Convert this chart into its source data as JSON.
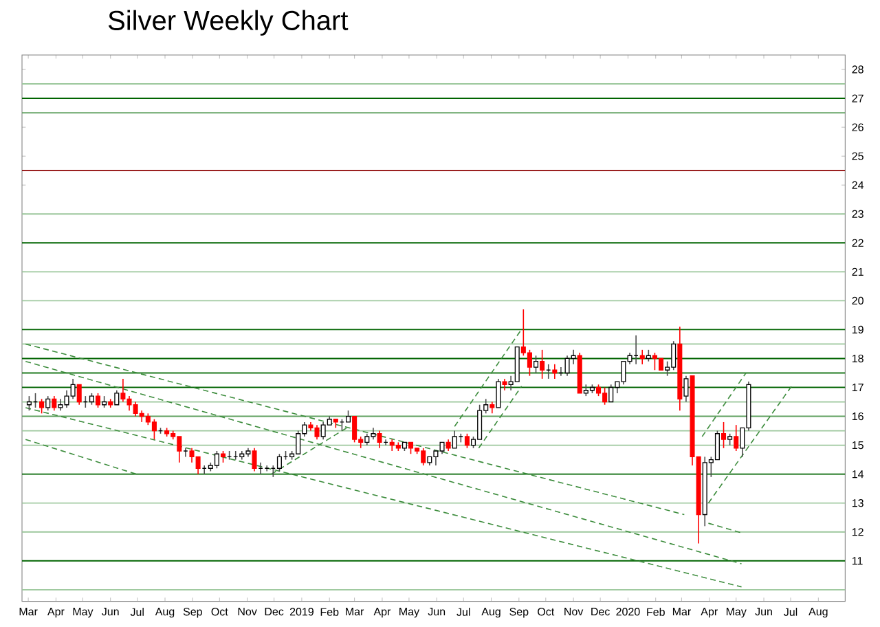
{
  "chart_data": {
    "type": "candlestick",
    "title": "Silver Weekly Chart",
    "colors": [
      "#ffffff",
      "#000000",
      "#ff0000",
      "#ffffff",
      "#ff0000",
      "#ffffff",
      "#ffffff",
      "#ffffff",
      "#ff0000",
      "#000000",
      "#ffffff",
      "#ff0000",
      "#ffffff",
      "#ff0000",
      "#ffffff",
      "#ff0000",
      "#ff0000",
      "#ff0000",
      "#ff0000",
      "#ff0000",
      "#ff0000",
      "#000000",
      "#ff0000",
      "#ff0000",
      "#ff0000",
      "#000000",
      "#ff0000",
      "#ff0000",
      "#000000",
      "#ffffff",
      "#ffffff",
      "#ff0000",
      "#000000",
      "#000000",
      "#ffffff",
      "#ffffff",
      "#ff0000",
      "#000000",
      "#000000",
      "#000000",
      "#ffffff",
      "#000000",
      "#ffffff",
      "#ffffff",
      "#ffffff",
      "#ff0000",
      "#ff0000",
      "#ffffff",
      "#ffffff",
      "#ff0000",
      "#000000",
      "#ffffff",
      "#ff0000",
      "#ff0000",
      "#ffffff",
      "#ffffff",
      "#ff0000",
      "#000000",
      "#ff0000",
      "#ff0000",
      "#ffffff",
      "#ff0000",
      "#ff0000",
      "#ff0000",
      "#ffffff",
      "#ffffff",
      "#ffffff",
      "#ff0000",
      "#ffffff",
      "#000000",
      "#ff0000",
      "#ffffff",
      "#ffffff",
      "#ffffff",
      "#ff0000",
      "#ffffff",
      "#ff0000",
      "#ffffff",
      "#ffffff",
      "#ff0000",
      "#ff0000",
      "#ffffff",
      "#ff0000",
      "#000000",
      "#ff0000",
      "#000000",
      "#ffffff",
      "#ffffff",
      "#ff0000",
      "#ffffff",
      "#ffffff",
      "#ff0000",
      "#ff0000",
      "#ffffff",
      "#ffffff",
      "#ffffff",
      "#ffffff",
      "#000000",
      "#ff0000",
      "#ffffff",
      "#ff0000",
      "#ff0000",
      "#ffffff",
      "#ffffff",
      "#ff0000",
      "#ffffff",
      "#ff0000",
      "#ff0000",
      "#ffffff",
      "#ffffff",
      "#ffffff",
      "#ff0000",
      "#ffffff",
      "#ff0000",
      "#ffffff",
      "#ffffff"
    ],
    "x": [
      "2018-03-02",
      "2018-03-09",
      "2018-03-16",
      "2018-03-23",
      "2018-03-30",
      "2018-04-06",
      "2018-04-13",
      "2018-04-20",
      "2018-04-27",
      "2018-05-04",
      "2018-05-11",
      "2018-05-18",
      "2018-05-25",
      "2018-06-01",
      "2018-06-08",
      "2018-06-15",
      "2018-06-22",
      "2018-06-29",
      "2018-07-06",
      "2018-07-13",
      "2018-07-20",
      "2018-07-27",
      "2018-08-03",
      "2018-08-10",
      "2018-08-17",
      "2018-08-24",
      "2018-08-31",
      "2018-09-07",
      "2018-09-14",
      "2018-09-21",
      "2018-09-28",
      "2018-10-05",
      "2018-10-12",
      "2018-10-19",
      "2018-10-26",
      "2018-11-02",
      "2018-11-09",
      "2018-11-16",
      "2018-11-23",
      "2018-11-30",
      "2018-12-07",
      "2018-12-14",
      "2018-12-21",
      "2018-12-28",
      "2019-01-04",
      "2019-01-11",
      "2019-01-18",
      "2019-01-25",
      "2019-02-01",
      "2019-02-08",
      "2019-02-15",
      "2019-02-22",
      "2019-03-01",
      "2019-03-08",
      "2019-03-15",
      "2019-03-22",
      "2019-03-29",
      "2019-04-05",
      "2019-04-12",
      "2019-04-19",
      "2019-04-26",
      "2019-05-03",
      "2019-05-10",
      "2019-05-17",
      "2019-05-24",
      "2019-05-31",
      "2019-06-07",
      "2019-06-14",
      "2019-06-21",
      "2019-06-28",
      "2019-07-05",
      "2019-07-12",
      "2019-07-19",
      "2019-07-26",
      "2019-08-02",
      "2019-08-09",
      "2019-08-16",
      "2019-08-23",
      "2019-08-30",
      "2019-09-06",
      "2019-09-13",
      "2019-09-20",
      "2019-09-27",
      "2019-10-04",
      "2019-10-11",
      "2019-10-18",
      "2019-10-25",
      "2019-11-01",
      "2019-11-08",
      "2019-11-15",
      "2019-11-22",
      "2019-11-29",
      "2019-12-06",
      "2019-12-13",
      "2019-12-20",
      "2019-12-27",
      "2020-01-03",
      "2020-01-10",
      "2020-01-17",
      "2020-01-24",
      "2020-01-31",
      "2020-02-07",
      "2020-02-14",
      "2020-02-21",
      "2020-02-28",
      "2020-03-06",
      "2020-03-13",
      "2020-03-20",
      "2020-03-27",
      "2020-04-03",
      "2020-04-10",
      "2020-04-17",
      "2020-04-24",
      "2020-05-01",
      "2020-05-08",
      "2020-05-15"
    ],
    "ohlc": [
      [
        16.4,
        16.7,
        16.2,
        16.5
      ],
      [
        16.5,
        16.8,
        16.3,
        16.5
      ],
      [
        16.5,
        16.6,
        16.1,
        16.3
      ],
      [
        16.3,
        16.7,
        16.2,
        16.6
      ],
      [
        16.6,
        16.7,
        16.2,
        16.3
      ],
      [
        16.3,
        16.6,
        16.2,
        16.4
      ],
      [
        16.4,
        16.9,
        16.3,
        16.7
      ],
      [
        16.7,
        17.3,
        16.6,
        17.1
      ],
      [
        17.1,
        17.1,
        16.4,
        16.5
      ],
      [
        16.5,
        16.7,
        16.3,
        16.5
      ],
      [
        16.5,
        16.8,
        16.4,
        16.7
      ],
      [
        16.7,
        16.8,
        16.3,
        16.4
      ],
      [
        16.4,
        16.7,
        16.3,
        16.5
      ],
      [
        16.5,
        16.6,
        16.3,
        16.4
      ],
      [
        16.4,
        16.9,
        16.4,
        16.8
      ],
      [
        16.8,
        17.3,
        16.5,
        16.6
      ],
      [
        16.6,
        16.7,
        16.2,
        16.4
      ],
      [
        16.4,
        16.5,
        16.0,
        16.1
      ],
      [
        16.1,
        16.2,
        15.8,
        16.0
      ],
      [
        16.0,
        16.1,
        15.7,
        15.8
      ],
      [
        15.8,
        15.9,
        15.2,
        15.5
      ],
      [
        15.5,
        15.6,
        15.4,
        15.5
      ],
      [
        15.5,
        15.6,
        15.3,
        15.4
      ],
      [
        15.4,
        15.5,
        15.2,
        15.3
      ],
      [
        15.3,
        15.3,
        14.4,
        14.8
      ],
      [
        14.8,
        14.9,
        14.6,
        14.8
      ],
      [
        14.8,
        14.9,
        14.4,
        14.6
      ],
      [
        14.6,
        14.6,
        14.0,
        14.2
      ],
      [
        14.2,
        14.3,
        14.0,
        14.2
      ],
      [
        14.2,
        14.4,
        14.1,
        14.3
      ],
      [
        14.3,
        14.8,
        14.2,
        14.7
      ],
      [
        14.7,
        14.8,
        14.4,
        14.6
      ],
      [
        14.6,
        14.8,
        14.5,
        14.6
      ],
      [
        14.6,
        14.8,
        14.5,
        14.6
      ],
      [
        14.6,
        14.8,
        14.5,
        14.7
      ],
      [
        14.7,
        14.9,
        14.6,
        14.8
      ],
      [
        14.8,
        14.9,
        14.1,
        14.2
      ],
      [
        14.2,
        14.4,
        14.0,
        14.2
      ],
      [
        14.2,
        14.3,
        14.1,
        14.2
      ],
      [
        14.2,
        14.3,
        13.9,
        14.2
      ],
      [
        14.2,
        14.7,
        14.1,
        14.6
      ],
      [
        14.6,
        14.8,
        14.5,
        14.6
      ],
      [
        14.6,
        14.8,
        14.5,
        14.7
      ],
      [
        14.7,
        15.5,
        14.7,
        15.4
      ],
      [
        15.4,
        15.8,
        15.3,
        15.7
      ],
      [
        15.7,
        15.8,
        15.5,
        15.6
      ],
      [
        15.6,
        15.7,
        15.2,
        15.3
      ],
      [
        15.3,
        15.8,
        15.2,
        15.7
      ],
      [
        15.7,
        16.0,
        15.7,
        15.9
      ],
      [
        15.9,
        15.9,
        15.6,
        15.8
      ],
      [
        15.8,
        15.9,
        15.5,
        15.8
      ],
      [
        15.8,
        16.2,
        15.8,
        16.0
      ],
      [
        16.0,
        16.0,
        15.1,
        15.2
      ],
      [
        15.2,
        15.3,
        14.9,
        15.1
      ],
      [
        15.1,
        15.4,
        15.0,
        15.3
      ],
      [
        15.3,
        15.6,
        15.2,
        15.4
      ],
      [
        15.4,
        15.5,
        14.9,
        15.1
      ],
      [
        15.1,
        15.2,
        15.0,
        15.1
      ],
      [
        15.1,
        15.2,
        14.8,
        15.0
      ],
      [
        15.0,
        15.1,
        14.8,
        14.9
      ],
      [
        14.9,
        15.1,
        14.8,
        15.1
      ],
      [
        15.1,
        15.1,
        14.7,
        14.9
      ],
      [
        14.9,
        14.9,
        14.7,
        14.8
      ],
      [
        14.8,
        14.9,
        14.3,
        14.4
      ],
      [
        14.4,
        14.6,
        14.3,
        14.6
      ],
      [
        14.6,
        14.8,
        14.3,
        14.8
      ],
      [
        14.8,
        15.1,
        14.7,
        15.1
      ],
      [
        15.1,
        15.2,
        14.8,
        14.9
      ],
      [
        14.9,
        15.5,
        14.9,
        15.3
      ],
      [
        15.3,
        15.4,
        15.1,
        15.3
      ],
      [
        15.3,
        15.4,
        14.9,
        15.0
      ],
      [
        15.0,
        15.3,
        14.9,
        15.2
      ],
      [
        15.2,
        16.4,
        15.2,
        16.2
      ],
      [
        16.2,
        16.6,
        16.1,
        16.4
      ],
      [
        16.4,
        16.5,
        16.1,
        16.3
      ],
      [
        16.3,
        17.3,
        16.3,
        17.2
      ],
      [
        17.2,
        17.3,
        16.9,
        17.1
      ],
      [
        17.1,
        17.4,
        16.9,
        17.2
      ],
      [
        17.2,
        18.4,
        17.2,
        18.4
      ],
      [
        18.4,
        19.7,
        18.1,
        18.2
      ],
      [
        18.2,
        18.3,
        17.4,
        17.7
      ],
      [
        17.7,
        18.1,
        17.5,
        17.9
      ],
      [
        17.9,
        18.3,
        17.3,
        17.6
      ],
      [
        17.6,
        17.8,
        17.3,
        17.6
      ],
      [
        17.6,
        17.8,
        17.3,
        17.5
      ],
      [
        17.5,
        17.7,
        17.4,
        17.5
      ],
      [
        17.5,
        18.1,
        17.4,
        18.0
      ],
      [
        18.0,
        18.3,
        17.8,
        18.1
      ],
      [
        18.1,
        18.2,
        16.8,
        16.8
      ],
      [
        16.8,
        17.1,
        16.7,
        16.9
      ],
      [
        16.9,
        17.1,
        16.8,
        17.0
      ],
      [
        17.0,
        17.1,
        16.7,
        16.8
      ],
      [
        16.8,
        17.0,
        16.4,
        16.5
      ],
      [
        16.5,
        17.1,
        16.5,
        17.0
      ],
      [
        17.0,
        17.2,
        16.8,
        17.2
      ],
      [
        17.2,
        17.9,
        17.1,
        17.9
      ],
      [
        17.9,
        18.2,
        17.8,
        18.1
      ],
      [
        18.1,
        18.8,
        17.8,
        18.1
      ],
      [
        18.1,
        18.3,
        17.8,
        18.0
      ],
      [
        18.0,
        18.3,
        17.9,
        18.1
      ],
      [
        18.1,
        18.2,
        17.6,
        18.0
      ],
      [
        18.0,
        18.0,
        17.6,
        17.6
      ],
      [
        17.6,
        17.9,
        17.4,
        17.7
      ],
      [
        17.7,
        18.6,
        17.6,
        18.5
      ],
      [
        18.5,
        19.1,
        16.2,
        16.6
      ],
      [
        16.7,
        17.4,
        16.5,
        17.3
      ],
      [
        17.4,
        17.4,
        14.3,
        14.6
      ],
      [
        14.6,
        14.6,
        11.6,
        12.6
      ],
      [
        12.6,
        14.6,
        12.2,
        14.4
      ],
      [
        14.4,
        14.6,
        13.9,
        14.5
      ],
      [
        14.5,
        15.5,
        14.5,
        15.4
      ],
      [
        15.4,
        15.8,
        14.9,
        15.2
      ],
      [
        15.2,
        15.4,
        15.0,
        15.3
      ],
      [
        15.3,
        15.7,
        14.8,
        14.9
      ],
      [
        14.9,
        15.6,
        14.6,
        15.6
      ],
      [
        15.6,
        17.2,
        15.5,
        17.1
      ]
    ],
    "series": [
      {
        "type": "line",
        "color": "#3c8c3c",
        "x": [
          "2018-02-26",
          "2020-03-04"
        ],
        "values": [
          18.5,
          12.6
        ]
      },
      {
        "type": "line",
        "color": "#3c8c3c",
        "x": [
          "2018-02-26",
          "2020-05-07"
        ],
        "values": [
          17.9,
          10.9
        ]
      },
      {
        "type": "line",
        "color": "#3c8c3c",
        "x": [
          "2018-02-26",
          "2020-05-07"
        ],
        "values": [
          16.3,
          10.1
        ]
      },
      {
        "type": "line",
        "color": "#3c8c3c",
        "x": [
          "2018-02-26",
          "2018-06-30"
        ],
        "values": [
          15.2,
          14.0
        ]
      },
      {
        "type": "line",
        "color": "#3c8c3c",
        "x": [
          "2018-11-28",
          "2019-02-23"
        ],
        "values": [
          14.0,
          15.65
        ]
      },
      {
        "type": "line",
        "color": "#3c8c3c",
        "x": [
          "2019-06-21",
          "2019-09-03"
        ],
        "values": [
          15.65,
          18.97
        ]
      },
      {
        "type": "line",
        "color": "#3c8c3c",
        "x": [
          "2019-07-18",
          "2019-09-04"
        ],
        "values": [
          14.9,
          17.04
        ]
      },
      {
        "type": "line",
        "color": "#3c8c3c",
        "x": [
          "2020-03-24",
          "2020-05-12"
        ],
        "values": [
          15.3,
          17.5
        ]
      },
      {
        "type": "line",
        "color": "#3c8c3c",
        "x": [
          "2020-03-31",
          "2020-07-02"
        ],
        "values": [
          13.0,
          17.04
        ]
      },
      {
        "type": "line",
        "color": "#3c8c3c",
        "x": [
          "2020-03-31",
          "2020-05-07"
        ],
        "values": [
          12.3,
          11.97
        ]
      }
    ],
    "line_style": "dashed",
    "ref_lines": [
      {
        "axis": "y",
        "value": 10,
        "color": "#9cc79c"
      },
      {
        "axis": "y",
        "value": 11,
        "color": "#006400"
      },
      {
        "axis": "y",
        "value": 12,
        "color": "#9cc79c"
      },
      {
        "axis": "y",
        "value": 13,
        "color": "#9cc79c"
      },
      {
        "axis": "y",
        "value": 14,
        "color": "#006400"
      },
      {
        "axis": "y",
        "value": 15,
        "color": "#9cc79c"
      },
      {
        "axis": "y",
        "value": 15.5,
        "color": "#9cc79c"
      },
      {
        "axis": "y",
        "value": 16,
        "color": "#5fa05f"
      },
      {
        "axis": "y",
        "value": 16.5,
        "color": "#9cc79c"
      },
      {
        "axis": "y",
        "value": 17,
        "color": "#006400"
      },
      {
        "axis": "y",
        "value": 17.5,
        "color": "#1f7a1f"
      },
      {
        "axis": "y",
        "value": 18,
        "color": "#006400"
      },
      {
        "axis": "y",
        "value": 18.5,
        "color": "#9cc79c"
      },
      {
        "axis": "y",
        "value": 19,
        "color": "#006400"
      },
      {
        "axis": "y",
        "value": 20,
        "color": "#9cc79c"
      },
      {
        "axis": "y",
        "value": 21,
        "color": "#9cc79c"
      },
      {
        "axis": "y",
        "value": 22,
        "color": "#006400"
      },
      {
        "axis": "y",
        "value": 23,
        "color": "#9cc79c"
      },
      {
        "axis": "y",
        "value": 24.5,
        "color": "#8b0000"
      },
      {
        "axis": "y",
        "value": 26.5,
        "color": "#5fa05f"
      },
      {
        "axis": "y",
        "value": 27,
        "color": "#006400"
      },
      {
        "axis": "y",
        "value": 27.5,
        "color": "#9cc79c"
      }
    ],
    "xlim": [
      "2018-02-22",
      "2020-08-31"
    ],
    "xticks": [
      {
        "value": "2018-03-01",
        "label": "Mar"
      },
      {
        "value": "2018-04-01",
        "label": "Apr"
      },
      {
        "value": "2018-05-01",
        "label": "May"
      },
      {
        "value": "2018-06-01",
        "label": "Jun"
      },
      {
        "value": "2018-07-01",
        "label": "Jul"
      },
      {
        "value": "2018-08-01",
        "label": "Aug"
      },
      {
        "value": "2018-09-01",
        "label": "Sep"
      },
      {
        "value": "2018-10-01",
        "label": "Oct"
      },
      {
        "value": "2018-11-01",
        "label": "Nov"
      },
      {
        "value": "2018-12-01",
        "label": "Dec"
      },
      {
        "value": "2019-01-01",
        "label": "2019"
      },
      {
        "value": "2019-02-01",
        "label": "Feb"
      },
      {
        "value": "2019-03-01",
        "label": "Mar"
      },
      {
        "value": "2019-04-01",
        "label": "Apr"
      },
      {
        "value": "2019-05-01",
        "label": "May"
      },
      {
        "value": "2019-06-01",
        "label": "Jun"
      },
      {
        "value": "2019-07-01",
        "label": "Jul"
      },
      {
        "value": "2019-08-01",
        "label": "Aug"
      },
      {
        "value": "2019-09-01",
        "label": "Sep"
      },
      {
        "value": "2019-10-01",
        "label": "Oct"
      },
      {
        "value": "2019-11-01",
        "label": "Nov"
      },
      {
        "value": "2019-12-01",
        "label": "Dec"
      },
      {
        "value": "2020-01-01",
        "label": "2020"
      },
      {
        "value": "2020-02-01",
        "label": "Feb"
      },
      {
        "value": "2020-03-01",
        "label": "Mar"
      },
      {
        "value": "2020-04-01",
        "label": "Apr"
      },
      {
        "value": "2020-05-01",
        "label": "May"
      },
      {
        "value": "2020-06-01",
        "label": "Jun"
      },
      {
        "value": "2020-07-01",
        "label": "Jul"
      },
      {
        "value": "2020-08-01",
        "label": "Aug"
      }
    ],
    "ylim": [
      9.6,
      28.5
    ],
    "yticks": [
      11,
      12,
      13,
      14,
      15,
      16,
      17,
      18,
      19,
      20,
      21,
      22,
      23,
      24,
      25,
      26,
      27,
      28
    ]
  }
}
